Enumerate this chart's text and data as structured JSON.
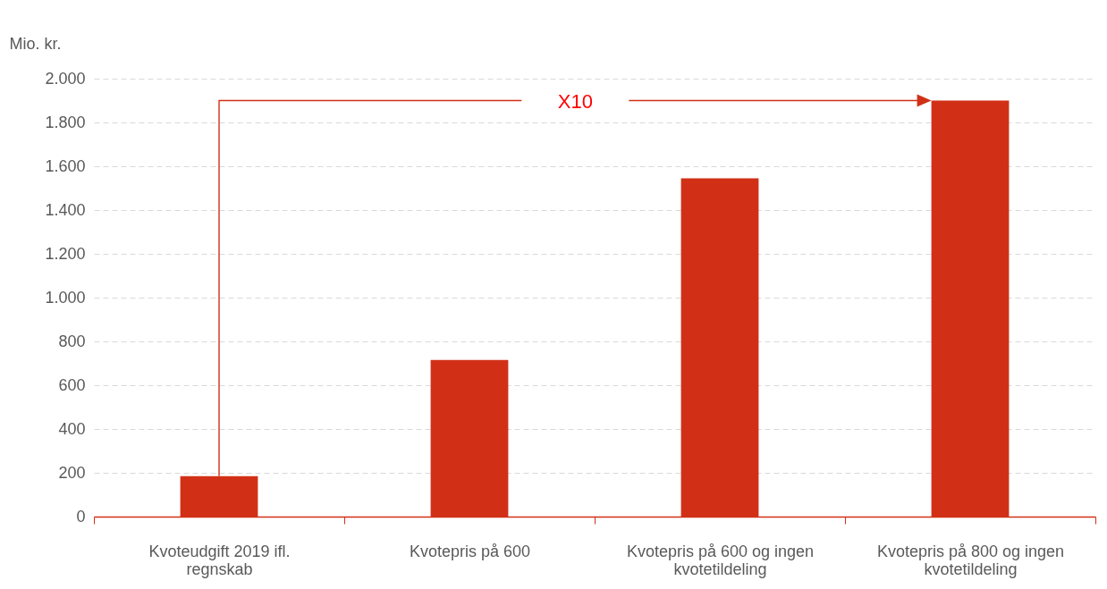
{
  "chart_data": {
    "type": "bar",
    "ylabel": "Mio. kr.",
    "categories": [
      "Kvoteudgift 2019 ifl. regnskab",
      "Kvotepris på 600",
      "Kvotepris på 600 og ingen kvotetildeling",
      "Kvotepris på 800 og ingen kvotetildeling"
    ],
    "values": [
      185,
      715,
      1545,
      1900
    ],
    "color": "#d13017",
    "ylim": [
      0,
      2000
    ],
    "yticks": [
      0,
      200,
      400,
      600,
      800,
      {
        "value": 1000,
        "label": "1.000"
      },
      {
        "value": 1200,
        "label": "1.200"
      },
      {
        "value": 1400,
        "label": "1.400"
      },
      {
        "value": 1600,
        "label": "1.600"
      },
      {
        "value": 1800,
        "label": "1.800"
      },
      {
        "value": 2000,
        "label": "2.000"
      }
    ],
    "grid": "y",
    "annotations": [
      "X10"
    ]
  }
}
